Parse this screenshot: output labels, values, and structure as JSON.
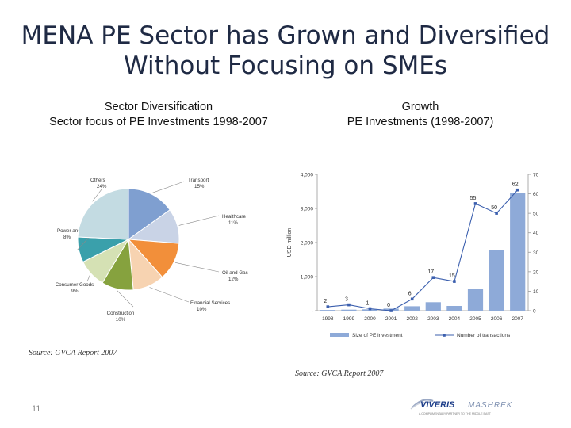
{
  "slide": {
    "title_line1": "MENA PE Sector has Grown and Diversified",
    "title_line2": "Without Focusing on SMEs",
    "page_number": "11"
  },
  "left_panel": {
    "heading": "Sector Diversification",
    "subheading": "Sector focus of PE Investments  1998-2007",
    "source": "Source: GVCA Report 2007"
  },
  "right_panel": {
    "heading": "Growth",
    "subheading": "PE Investments (1998-2007)",
    "source": "Source: GVCA Report 2007"
  },
  "logo": {
    "brand": "VIVERIS",
    "brand2": "MASHREK",
    "tagline": "A COMPLIMENTARY PARTNER TO THE MIDDLE EAST"
  },
  "chart_data": [
    {
      "type": "pie",
      "title": "",
      "slices": [
        {
          "label": "Transport",
          "value": 15,
          "display": "15%",
          "color": "#7f9fd0"
        },
        {
          "label": "Healthcare",
          "value": 11,
          "display": "11%",
          "color": "#c9d3e6"
        },
        {
          "label": "Oil and Gas",
          "value": 12,
          "display": "12%",
          "color": "#f28f3a"
        },
        {
          "label": "Financial Services",
          "value": 10,
          "display": "10%",
          "color": "#f7d3b1"
        },
        {
          "label": "Construction",
          "value": 10,
          "display": "10%",
          "color": "#86a23e"
        },
        {
          "label": "Consumer Goods",
          "value": 9,
          "display": "9%",
          "color": "#d5e1b4"
        },
        {
          "label": "Power and Utilities",
          "value": 8,
          "display": "8%",
          "color": "#3aa0ab"
        },
        {
          "label": "Others",
          "value": 24,
          "display": "24%",
          "color": "#c3dbe2"
        }
      ]
    },
    {
      "type": "bar",
      "title": "",
      "categories": [
        "1998",
        "1999",
        "2000",
        "2001",
        "2002",
        "2003",
        "2004",
        "2005",
        "2006",
        "2007"
      ],
      "ylabel": "USD million",
      "ylim": [
        0,
        4000
      ],
      "yticks": [
        "-",
        "1,000",
        "2,000",
        "3,000",
        "4,000"
      ],
      "y2lim": [
        0,
        70
      ],
      "y2ticks": [
        "0",
        "10",
        "20",
        "30",
        "40",
        "50",
        "60",
        "70"
      ],
      "series": [
        {
          "name": "Size of PE investment",
          "axis": "left",
          "color": "#8eaad8",
          "values": [
            20,
            30,
            40,
            60,
            130,
            250,
            140,
            650,
            1780,
            3450
          ]
        },
        {
          "name": "Number of transactions",
          "axis": "right",
          "color": "#3b5fae",
          "values": [
            2,
            3,
            1,
            0,
            6,
            17,
            15,
            55,
            50,
            62
          ],
          "labels": [
            "2",
            "3",
            "1",
            "0",
            "6",
            "17",
            "15",
            "55",
            "50",
            "62"
          ]
        }
      ],
      "legend": "bottom"
    }
  ]
}
